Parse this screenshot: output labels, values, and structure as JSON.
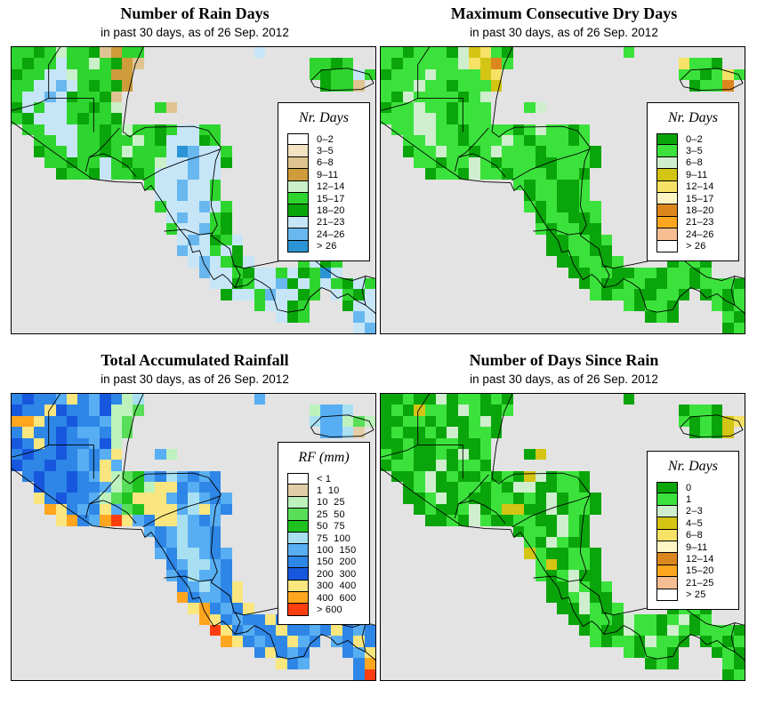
{
  "map": {
    "sea_color": "#E3E3E3",
    "border_color": "#000000"
  },
  "panels": [
    {
      "id": "rain-days",
      "title": "Number of Rain Days",
      "subtitle": "in past 30 days, as of  26 Sep. 2012",
      "legend": {
        "title": "Nr. Days",
        "entries": [
          {
            "label": "0–2",
            "color": "#FFFFFF"
          },
          {
            "label": "3–5",
            "color": "#F2E3C3"
          },
          {
            "label": "6–8",
            "color": "#DFC491"
          },
          {
            "label": "9–11",
            "color": "#CE9C3A"
          },
          {
            "label": "12–14",
            "color": "#C9F0C9"
          },
          {
            "label": "15–17",
            "color": "#2ED52E"
          },
          {
            "label": "18–20",
            "color": "#0AA50A"
          },
          {
            "label": "21–23",
            "color": "#C6E6F8"
          },
          {
            "label": "24–26",
            "color": "#68B7EE"
          },
          {
            "label": "> 26",
            "color": "#2B94D5"
          }
        ]
      },
      "palette": {
        "a": "#FFFFFF",
        "b": "#F2E3C3",
        "c": "#DFC491",
        "d": "#CE9C3A",
        "e": "#C9F0C9",
        "f": "#2ED52E",
        "g": "#0AA50A",
        "h": "#C6E6F8",
        "i": "#68B7EE",
        "j": "#2B94D5"
      },
      "raster": [
        "ffgfeffgcdff..........h..........",
        "fgffhffefgdc...............ffgf..",
        "gffhhefffdd................fgffhf",
        "ffhhihfgfgd.................gffc.",
        "fhhihgffgc.......................",
        "ghfhhffgfe...fc..................",
        "fghhhfgffg.......................",
        ".ffhhhffgfeffgfhhff..............",
        "..ffhhffgffefghhhgf..............",
        "..gffhffgfefffhjihhf.............",
        "...ffgffhfgffehhihhg.............",
        "....gffghffgfhhhihh..............",
        "............fhhihhf..............",
        ".............hhihhf..............",
        ".............fhhhihf.............",
        "..............hihhfg.............",
        "..............fhhifg.............",
        "...............hihgfh............",
        "...............ihhfhg............",
        "................hihfgh....fhgf...",
        ".................ihhfghhfhgfjh...",
        "..................hhgfhhighfhfghf",
        "...................ghhfihhgf.hfgh",
        "......................fhhgf...ghh",
        "........................hgf....ih",
        "...............................hi"
      ]
    },
    {
      "id": "consecutive-dry-days",
      "title": "Maximum Consecutive Dry Days",
      "subtitle": "in past 30 days, as of  26 Sep. 2012",
      "legend": {
        "title": "Nr. Days",
        "entries": [
          {
            "label": "0–2",
            "color": "#0AA50A"
          },
          {
            "label": "3–5",
            "color": "#3BE23B"
          },
          {
            "label": "6–8",
            "color": "#CEEECE"
          },
          {
            "label": "9–11",
            "color": "#D4C414"
          },
          {
            "label": "12–14",
            "color": "#F6E266"
          },
          {
            "label": "15–17",
            "color": "#FDF6C4"
          },
          {
            "label": "18–20",
            "color": "#DC861E"
          },
          {
            "label": "21–23",
            "color": "#FEA61E"
          },
          {
            "label": "24–26",
            "color": "#F6BE92"
          },
          {
            "label": "> 26",
            "color": "#FFFFFF"
          }
        ]
      },
      "palette": {
        "a": "#0AA50A",
        "b": "#3BE23B",
        "c": "#CEEECE",
        "d": "#D4C414",
        "e": "#F6E266",
        "f": "#FDF6C4",
        "g": "#DC861E",
        "h": "#FEA61E",
        "i": "#F6BE92",
        "j": "#FFFFFF"
      },
      "raster": [
        "bbabbbacdeba..........b..........",
        "babbbbbcedgb...............ebba..",
        "abbbcbbbbde................bbabeb",
        "bbbcbbabbbd.................abbg.",
        "bacbbbbabc.......................",
        "abbcbbabbb...bc..................",
        "bbbccbabbb.......................",
        ".bbccbbabbbbabcbbab..............",
        "..bbcbbabbbcbabbbab..............",
        "..abbcbbabcbbbabbbba.............",
        "...bbabbcbabbbaabbba.............",
        "....abbacbbabbbabba..............",
        "............babbaab..............",
        ".............abbaab..............",
        ".............babaabb.............",
        "..............abbaab.............",
        "..............babbaa.............",
        "...............aabbab............",
        "...............aabbaa............",
        "................aabbab....abba...",
        ".................aabbaabbabbab...",
        "..................abaabbaabbabbba",
        "...................babbaabba.abab",
        "......................babba...bab",
        "........................aba....ba",
        "...............................ab"
      ]
    },
    {
      "id": "accumulated-rainfall",
      "title": "Total Accumulated Rainfall",
      "subtitle": "in past 30 days, as of  26 Sep. 2012",
      "legend": {
        "title": "RF (mm)",
        "entries": [
          {
            "label": "< 1",
            "color": "#FFFFFF"
          },
          {
            "label": "1  10",
            "color": "#E2CEA6"
          },
          {
            "label": "10  25",
            "color": "#BDF2BD"
          },
          {
            "label": "25  50",
            "color": "#58DE58"
          },
          {
            "label": "50  75",
            "color": "#1FC21F"
          },
          {
            "label": "75  100",
            "color": "#A8E0F2"
          },
          {
            "label": "100  150",
            "color": "#58AEF2"
          },
          {
            "label": "150  200",
            "color": "#2E86E6"
          },
          {
            "label": "200  300",
            "color": "#1757DE"
          },
          {
            "label": "300  400",
            "color": "#FAE67E"
          },
          {
            "label": "400  600",
            "color": "#FFA61E"
          },
          {
            "label": "> 600",
            "color": "#FE3E0E"
          }
        ]
      },
      "palette": {
        "a": "#FFFFFF",
        "b": "#E2CEA6",
        "c": "#BDF2BD",
        "d": "#58DE58",
        "e": "#1FC21F",
        "f": "#A8E0F2",
        "g": "#58AEF2",
        "h": "#2E86E6",
        "i": "#1757DE",
        "j": "#FAE67E",
        "k": "#FFA61E",
        "l": "#FE3E0E"
      },
      "raster": [
        "hihhgjhgihcf..........g..........",
        "ihhjihhgiccd...............cggf..",
        "kkjhhihhgcd................fggcdc",
        "hjhhihgghcd.................ggfb.",
        "ihjhihhgic.......................",
        "hihhihghgj...gc..................",
        "ihhihhghjg.......................",
        ".hihhihgjcdeghfghgh..............",
        "..ihhihhgcdecjjhghh..............",
        "..jhihhgcdejjjghfghg.............",
        "...kjhghjgdejjjgfjgh.............",
        "....jkhgkljghjjfghg..............",
        "............ghgfggh..............",
        ".............hgfggh..............",
        ".............ghffghg.............",
        "..............hgffgh.............",
        "..............ghfggh.............",
        "...............hgfghj............",
        "...............khgghj............",
        "................jkhghj....hjgh...",
        ".................kjhghhjhghjgh...",
        "..................ljhghhjhhghjhgh",
        "...................kjhghhjgh.ghjh",
        "......................hjhgh...hgj",
        "........................jhg....hk",
        "...............................hl"
      ]
    },
    {
      "id": "days-since-rain",
      "title": "Number of Days Since Rain",
      "subtitle": "in past 30 days, as of  26 Sep. 2012",
      "legend": {
        "title": "Nr. Days",
        "entries": [
          {
            "label": "0",
            "color": "#0AA50A"
          },
          {
            "label": "1",
            "color": "#3BE23B"
          },
          {
            "label": "2–3",
            "color": "#CEEECE"
          },
          {
            "label": "4–5",
            "color": "#D4C414"
          },
          {
            "label": "6–8",
            "color": "#F6E266"
          },
          {
            "label": "9–11",
            "color": "#FDF6C4"
          },
          {
            "label": "12–14",
            "color": "#DC861E"
          },
          {
            "label": "15–20",
            "color": "#FEA61E"
          },
          {
            "label": "21–25",
            "color": "#F6BE92"
          },
          {
            "label": "> 25",
            "color": "#FFFFFF"
          }
        ]
      },
      "palette": {
        "a": "#0AA50A",
        "b": "#3BE23B",
        "c": "#CEEECE",
        "d": "#D4C414",
        "e": "#F6E266",
        "f": "#FDF6C4",
        "g": "#DC861E",
        "h": "#FEA61E",
        "i": "#F6BE92",
        "j": "#FFFFFF"
      },
      "raster": [
        "aabaacabbaba..........a..........",
        "abadbbacbaab...............abba..",
        "aabbabaabca................babade",
        "abaabacabba.................abad.",
        "aabaabbaab.......................",
        "babaabacab...ad..................",
        "abbaacabba.......................",
        ".aabcabaababadcabba..............",
        "..abcaabbabaccaabba..............",
        "..aabcabaabbabacabba.............",
        "...abaabcabddaacabba.............",
        "....aabacbaabbaacba..............",
        "............abbacba..............",
        ".............bacbaa..............",
        ".............dbaabba.............",
        "..............bdabba.............",
        "..............babcaa.............",
        "...............aacbab............",
        "...............aabcaa............",
        "................aacbab....abba...",
        ".................aabbacbbabcab...",
        "..................abaacbbacbabbba",
        "...................babbacbba.abab",
        "......................babba...aba",
        "........................aba....ba",
        "...............................ab"
      ]
    }
  ]
}
